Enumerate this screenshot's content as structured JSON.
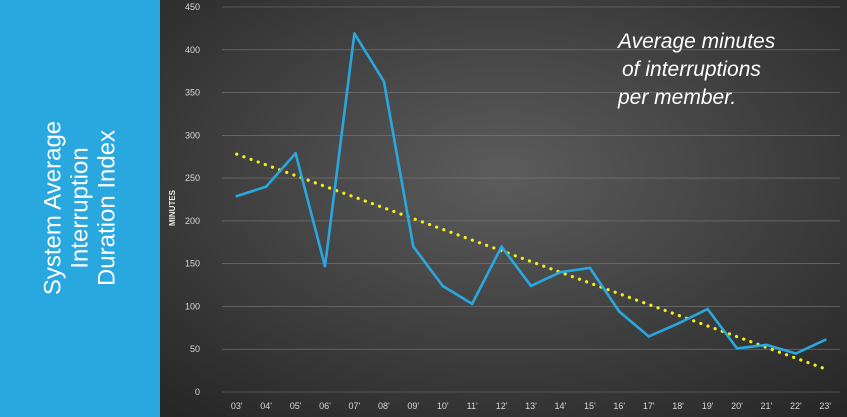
{
  "side_title_lines": [
    "System Average",
    "Interruption",
    "Duration Index"
  ],
  "annotation_lines": [
    "Average minutes",
    "of  interruptions",
    "per member."
  ],
  "chart_data": {
    "type": "line",
    "ylabel": "MINUTES",
    "xlabel": "",
    "categories": [
      "03'",
      "04'",
      "05'",
      "06'",
      "07'",
      "08'",
      "09'",
      "10'",
      "11'",
      "12'",
      "13'",
      "14'",
      "15'",
      "16'",
      "17'",
      "18'",
      "19'",
      "20'",
      "21'",
      "22'",
      "23'"
    ],
    "ylim": [
      0,
      450
    ],
    "yticks": [
      0,
      50,
      100,
      150,
      200,
      250,
      300,
      350,
      400,
      450
    ],
    "series": [
      {
        "values": [
          229,
          240,
          279,
          147,
          419,
          363,
          170,
          124,
          103,
          170,
          124,
          140,
          145,
          94,
          65,
          80,
          97,
          51,
          55,
          45,
          61
        ],
        "color": "#29a8e0"
      }
    ],
    "trendline": {
      "style": "dotted",
      "color": "#f2ee1a",
      "start": 278,
      "end": 27
    },
    "grid": true,
    "legend": "none"
  },
  "colors": {
    "side_panel": "#29a8e0",
    "line": "#29a8e0",
    "trend": "#f2ee1a"
  }
}
